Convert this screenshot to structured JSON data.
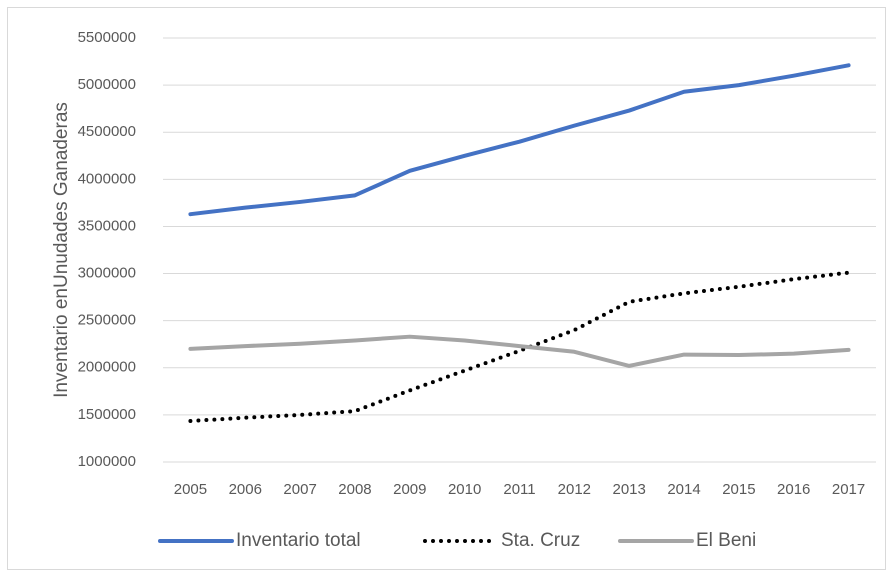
{
  "chart_data": {
    "type": "line",
    "y_label": "Inventario enUnudades Ganaderas",
    "categories": [
      "2005",
      "2006",
      "2007",
      "2008",
      "2009",
      "2010",
      "2011",
      "2012",
      "2013",
      "2014",
      "2015",
      "2016",
      "2017"
    ],
    "series": [
      {
        "name": "Inventario total",
        "color": "#4472c4",
        "style": "solid",
        "values": [
          3630000,
          3700000,
          3760000,
          3830000,
          4090000,
          4250000,
          4400000,
          4570000,
          4730000,
          4930000,
          5000000,
          5100000,
          5210000
        ]
      },
      {
        "name": "Sta. Cruz",
        "color": "#000000",
        "style": "dotted",
        "values": [
          1435000,
          1470000,
          1500000,
          1540000,
          1760000,
          1970000,
          2180000,
          2400000,
          2700000,
          2790000,
          2860000,
          2940000,
          3010000
        ]
      },
      {
        "name": "El Beni",
        "color": "#a5a5a5",
        "style": "solid",
        "values": [
          2200000,
          2230000,
          2255000,
          2290000,
          2330000,
          2290000,
          2230000,
          2170000,
          2020000,
          2140000,
          2135000,
          2150000,
          2190000
        ]
      }
    ],
    "ylim": [
      1000000,
      5500000
    ],
    "yticks": [
      1000000,
      1500000,
      2000000,
      2500000,
      3000000,
      3500000,
      4000000,
      4500000,
      5000000,
      5500000
    ],
    "grid": true,
    "legend": "bottom"
  }
}
